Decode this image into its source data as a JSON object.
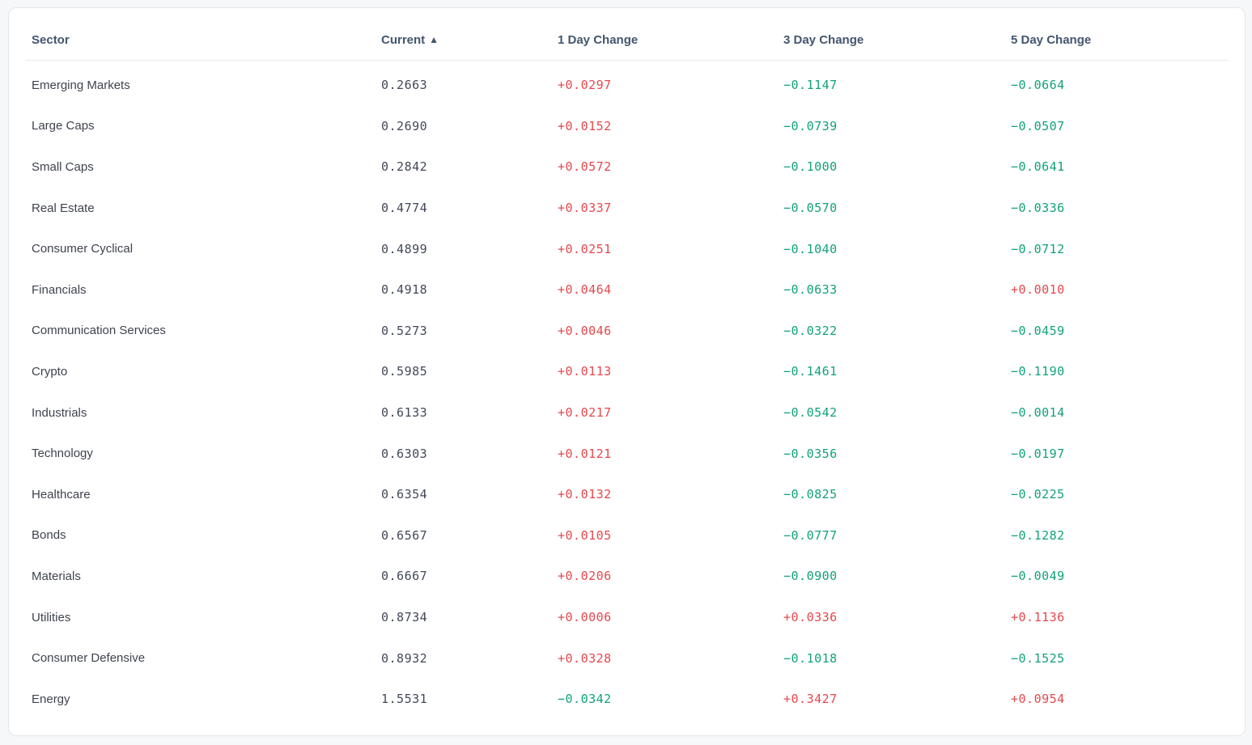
{
  "colors": {
    "page_bg": "#f6f7f9",
    "card_bg": "#ffffff",
    "card_border": "#e4e6ea",
    "divider": "#e6e8eb",
    "header_text": "#42566e",
    "sector_text": "#3e434e",
    "value_text": "#424859",
    "positive_text": "#e5484d",
    "negative_text": "#12a17a"
  },
  "table": {
    "columns": [
      {
        "key": "sector",
        "label": "Sector"
      },
      {
        "key": "current",
        "label": "Current"
      },
      {
        "key": "change_1d",
        "label": "1 Day Change"
      },
      {
        "key": "change_3d",
        "label": "3 Day Change"
      },
      {
        "key": "change_5d",
        "label": "5 Day Change"
      }
    ],
    "sort": {
      "column": "Current",
      "direction": "ascending",
      "icon": "▲"
    },
    "rows": [
      {
        "sector": "Emerging Markets",
        "current": "0.2663",
        "change_1d": "+0.0297",
        "change_3d": "−0.1147",
        "change_5d": "−0.0664"
      },
      {
        "sector": "Large Caps",
        "current": "0.2690",
        "change_1d": "+0.0152",
        "change_3d": "−0.0739",
        "change_5d": "−0.0507"
      },
      {
        "sector": "Small Caps",
        "current": "0.2842",
        "change_1d": "+0.0572",
        "change_3d": "−0.1000",
        "change_5d": "−0.0641"
      },
      {
        "sector": "Real Estate",
        "current": "0.4774",
        "change_1d": "+0.0337",
        "change_3d": "−0.0570",
        "change_5d": "−0.0336"
      },
      {
        "sector": "Consumer Cyclical",
        "current": "0.4899",
        "change_1d": "+0.0251",
        "change_3d": "−0.1040",
        "change_5d": "−0.0712"
      },
      {
        "sector": "Financials",
        "current": "0.4918",
        "change_1d": "+0.0464",
        "change_3d": "−0.0633",
        "change_5d": "+0.0010"
      },
      {
        "sector": "Communication Services",
        "current": "0.5273",
        "change_1d": "+0.0046",
        "change_3d": "−0.0322",
        "change_5d": "−0.0459"
      },
      {
        "sector": "Crypto",
        "current": "0.5985",
        "change_1d": "+0.0113",
        "change_3d": "−0.1461",
        "change_5d": "−0.1190"
      },
      {
        "sector": "Industrials",
        "current": "0.6133",
        "change_1d": "+0.0217",
        "change_3d": "−0.0542",
        "change_5d": "−0.0014"
      },
      {
        "sector": "Technology",
        "current": "0.6303",
        "change_1d": "+0.0121",
        "change_3d": "−0.0356",
        "change_5d": "−0.0197"
      },
      {
        "sector": "Healthcare",
        "current": "0.6354",
        "change_1d": "+0.0132",
        "change_3d": "−0.0825",
        "change_5d": "−0.0225"
      },
      {
        "sector": "Bonds",
        "current": "0.6567",
        "change_1d": "+0.0105",
        "change_3d": "−0.0777",
        "change_5d": "−0.1282"
      },
      {
        "sector": "Materials",
        "current": "0.6667",
        "change_1d": "+0.0206",
        "change_3d": "−0.0900",
        "change_5d": "−0.0049"
      },
      {
        "sector": "Utilities",
        "current": "0.8734",
        "change_1d": "+0.0006",
        "change_3d": "+0.0336",
        "change_5d": "+0.1136"
      },
      {
        "sector": "Consumer Defensive",
        "current": "0.8932",
        "change_1d": "+0.0328",
        "change_3d": "−0.1018",
        "change_5d": "−0.1525"
      },
      {
        "sector": "Energy",
        "current": "1.5531",
        "change_1d": "−0.0342",
        "change_3d": "+0.3427",
        "change_5d": "+0.0954"
      }
    ]
  }
}
